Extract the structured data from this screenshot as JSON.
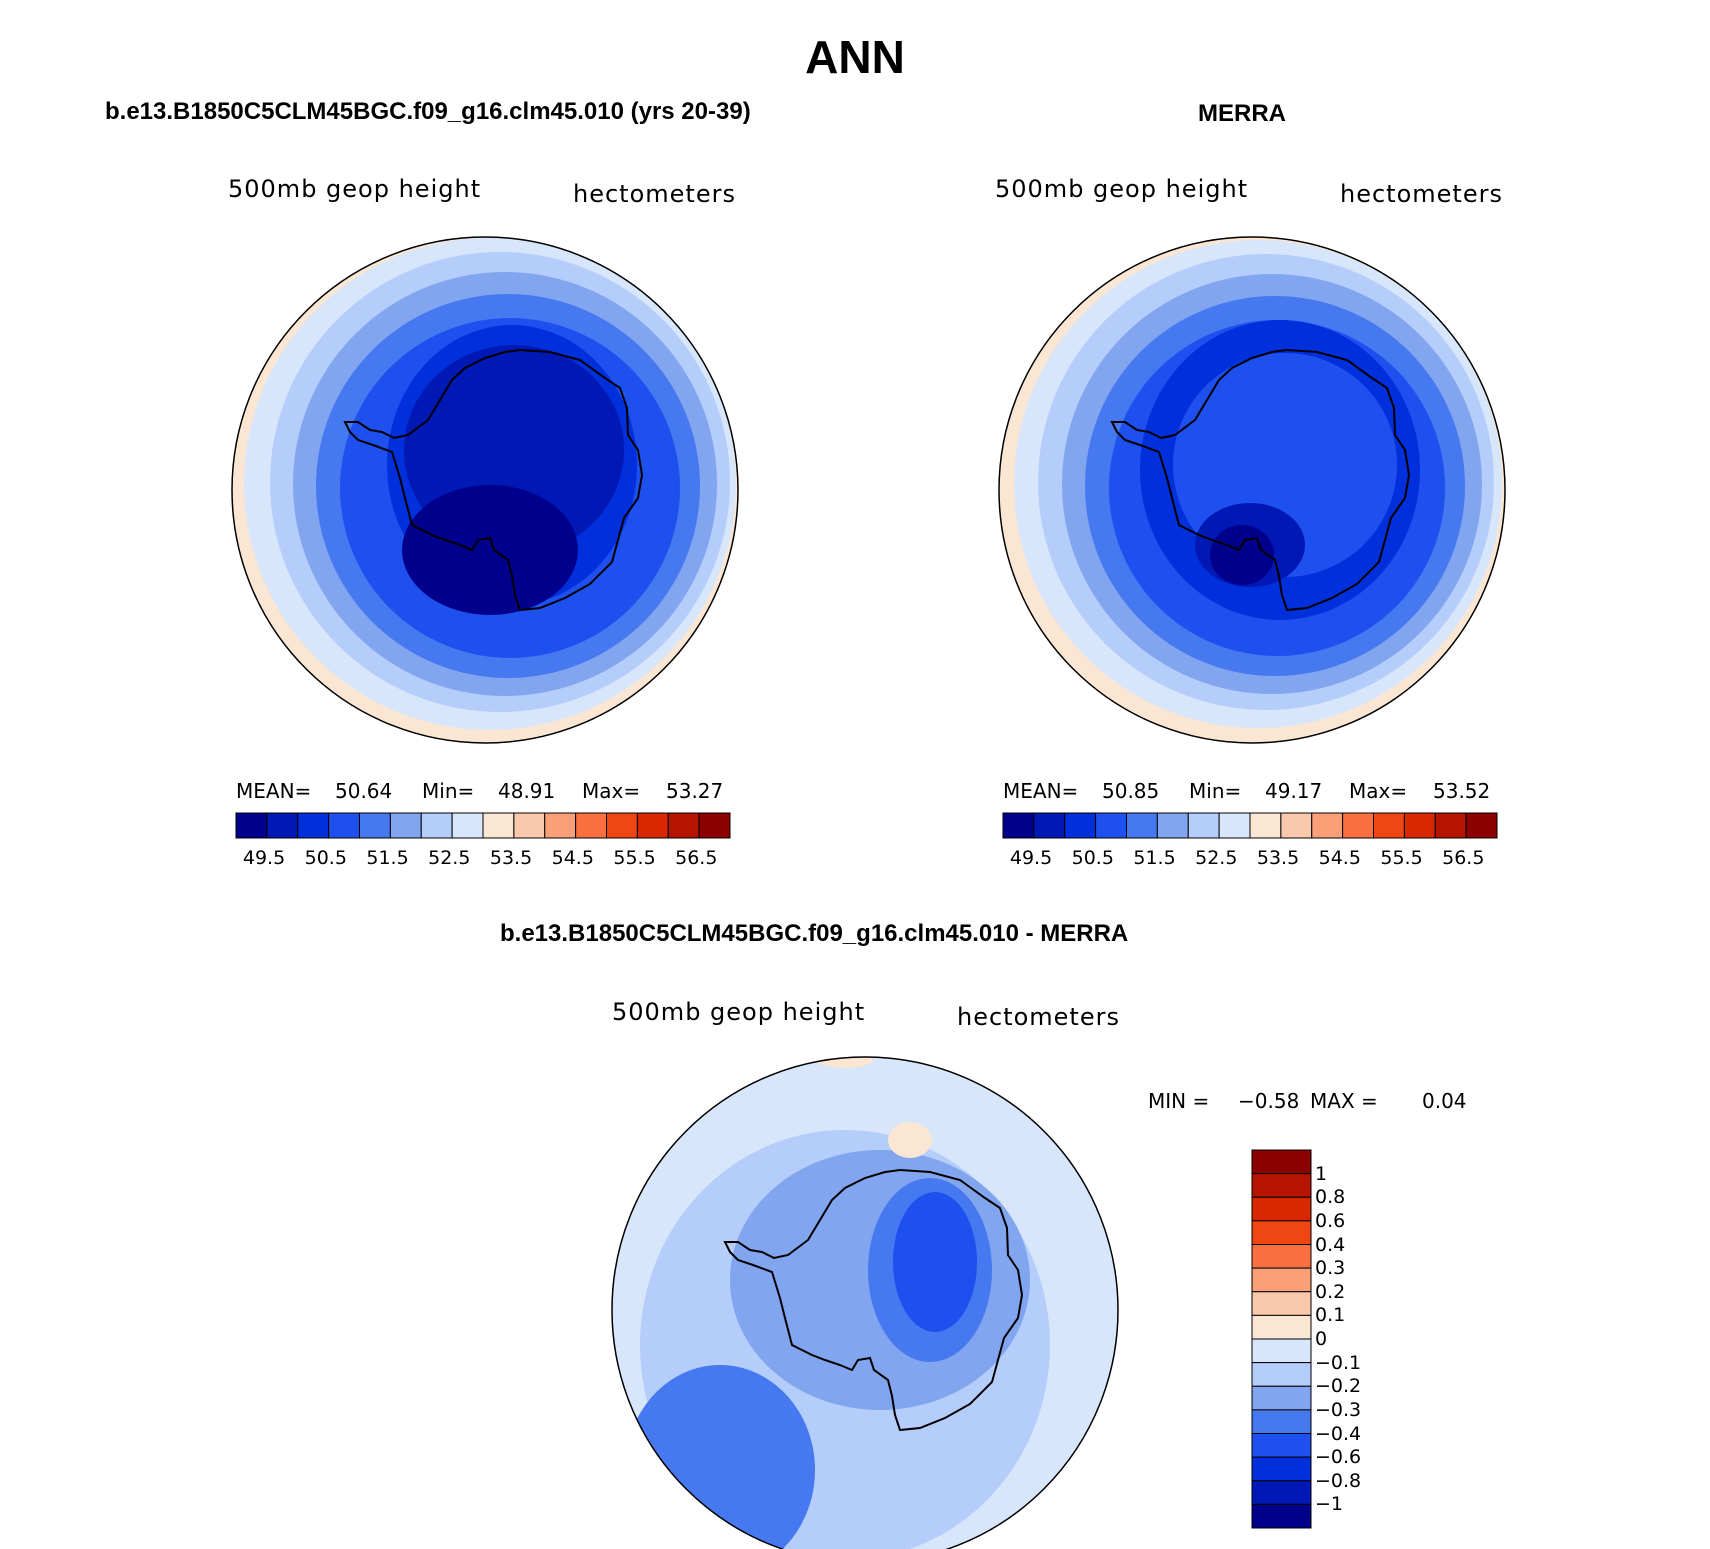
{
  "title": "ANN",
  "colors": {
    "blue_ramp": [
      "#00008c",
      "#0018b4",
      "#0030dc",
      "#1e50f0",
      "#4678f0",
      "#82a5f0",
      "#b4cdfa",
      "#d7e6fa"
    ],
    "red_ramp": [
      "#fae6d2",
      "#fac8aa",
      "#faa078",
      "#fa7041",
      "#f04614",
      "#d72800",
      "#b41400",
      "#8c0000"
    ],
    "coast": "#000000"
  },
  "panels": [
    {
      "id": "model",
      "title": "b.e13.B1850C5CLM45BGC.f09_g16.clm45.010 (yrs 20-39)",
      "variable": "500mb geop height",
      "units": "hectometers",
      "stats": {
        "mean_label": "MEAN=",
        "mean": "50.64",
        "min_label": "Min=",
        "min": "48.91",
        "max_label": "Max=",
        "max": "53.27"
      }
    },
    {
      "id": "obs",
      "title": "MERRA",
      "variable": "500mb geop height",
      "units": "hectometers",
      "stats": {
        "mean_label": "MEAN=",
        "mean": "50.85",
        "min_label": "Min=",
        "min": "49.17",
        "max_label": "Max=",
        "max": "53.52"
      }
    }
  ],
  "colorbar_ticks": [
    "49.5",
    "50.5",
    "51.5",
    "52.5",
    "53.5",
    "54.5",
    "55.5",
    "56.5"
  ],
  "diff": {
    "title": "b.e13.B1850C5CLM45BGC.f09_g16.clm45.010 - MERRA",
    "variable": "500mb geop height",
    "units": "hectometers",
    "min_label": "MIN =",
    "min": "−0.58",
    "max_label": "MAX =",
    "max": "0.04",
    "ticks": [
      "1",
      "0.8",
      "0.6",
      "0.4",
      "0.3",
      "0.2",
      "0.1",
      "0",
      "−0.1",
      "−0.2",
      "−0.3",
      "−0.4",
      "−0.6",
      "−0.8",
      "−1"
    ]
  }
}
